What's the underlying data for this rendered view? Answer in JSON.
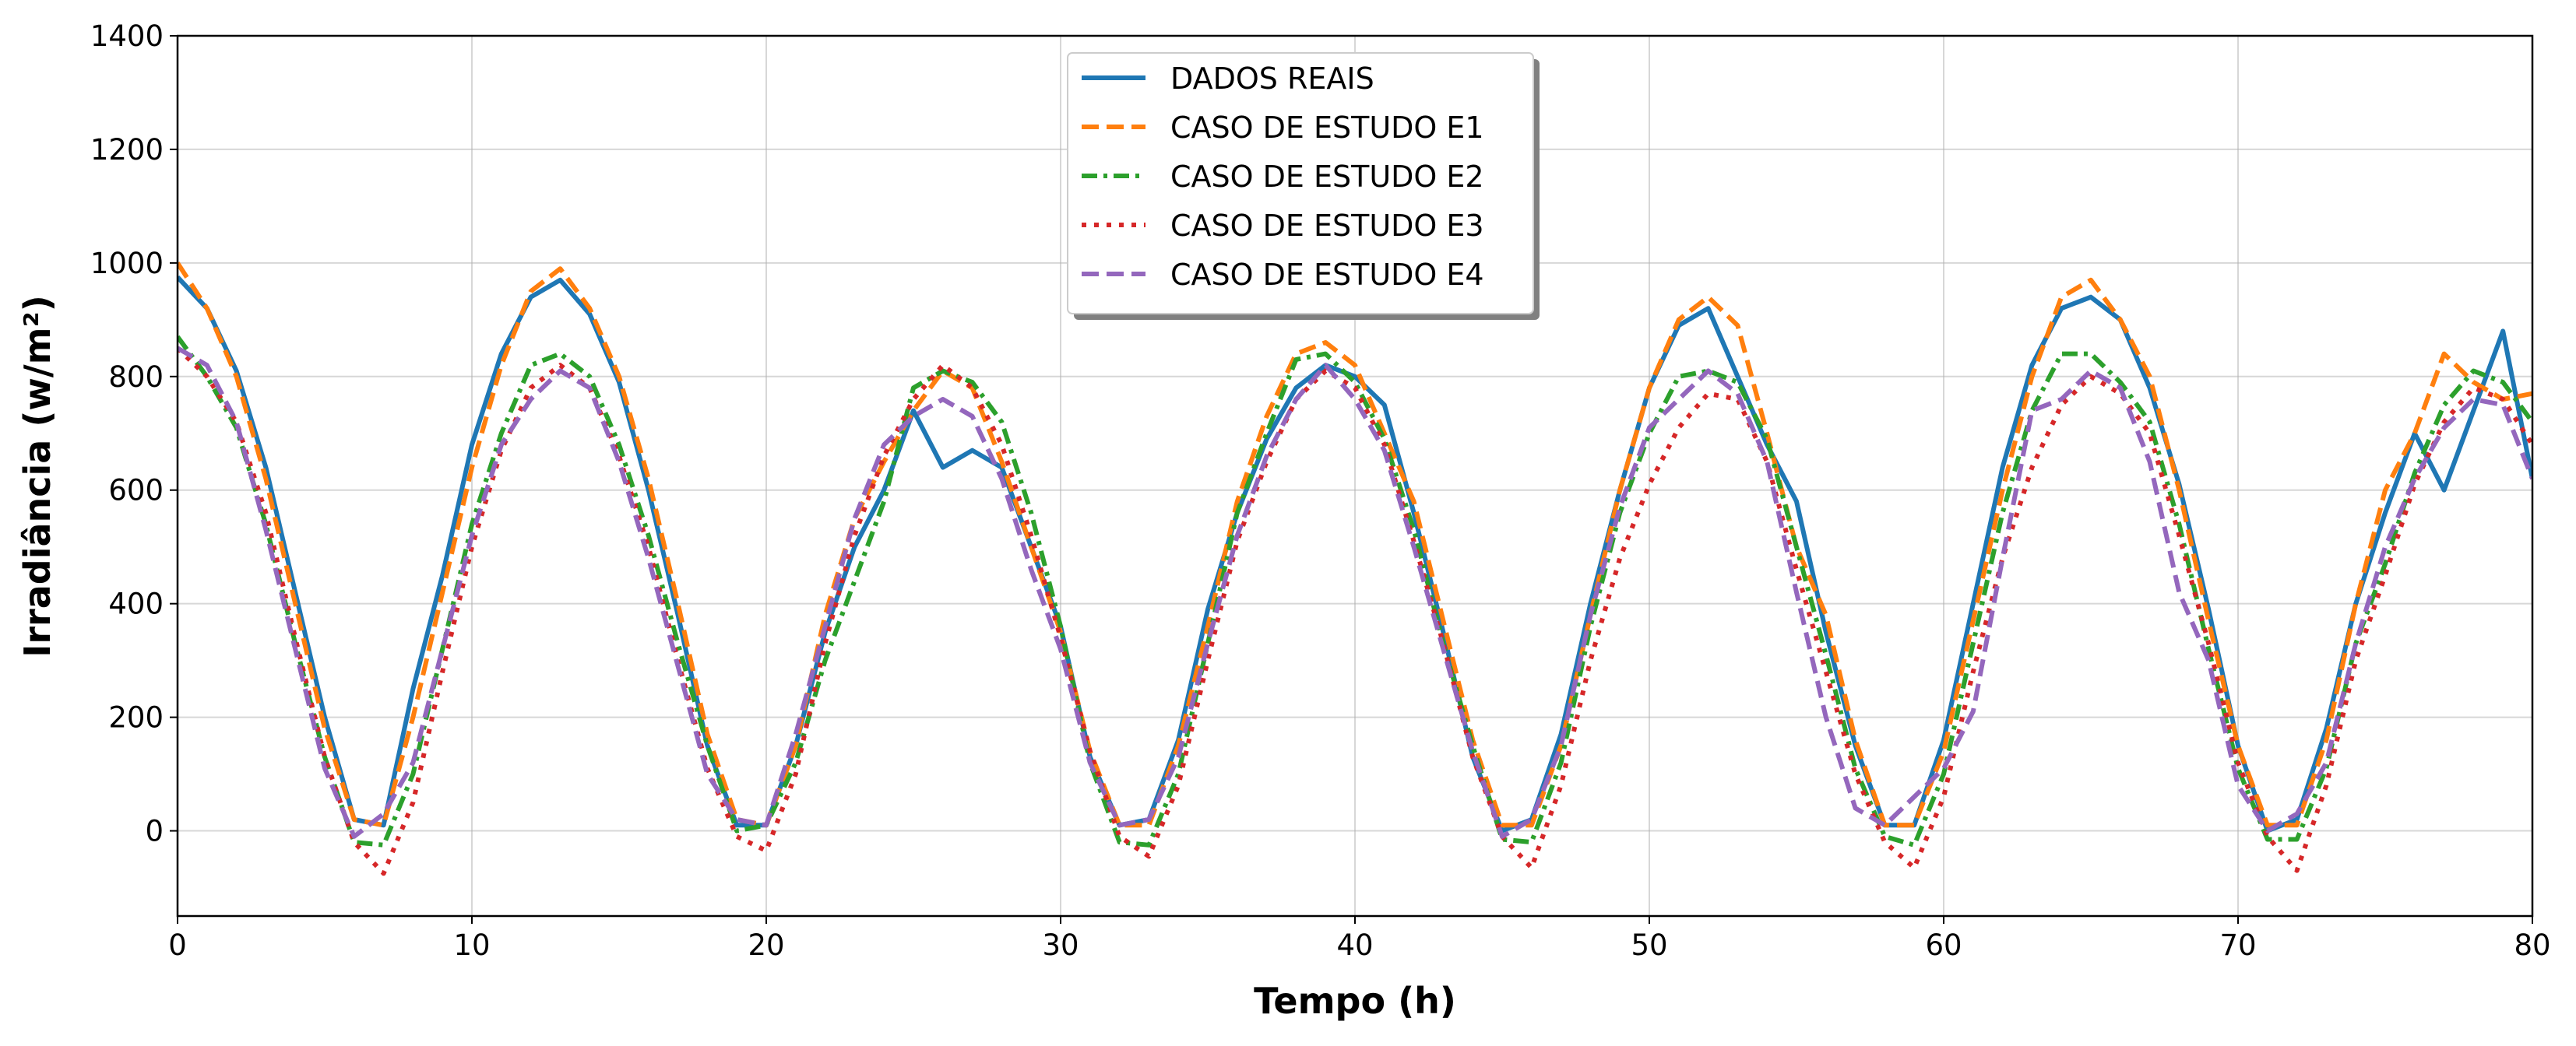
{
  "chart_data": {
    "type": "line",
    "xlabel": "Tempo (h)",
    "ylabel": "Irradiância (w/m²)",
    "x": [
      0,
      1,
      2,
      3,
      4,
      5,
      6,
      7,
      8,
      9,
      10,
      11,
      12,
      13,
      14,
      15,
      16,
      17,
      18,
      19,
      20,
      21,
      22,
      23,
      24,
      25,
      26,
      27,
      28,
      29,
      30,
      31,
      32,
      33,
      34,
      35,
      36,
      37,
      38,
      39,
      40,
      41,
      42,
      43,
      44,
      45,
      46,
      47,
      48,
      49,
      50,
      51,
      52,
      53,
      54,
      55,
      56,
      57,
      58,
      59,
      60,
      61,
      62,
      63,
      64,
      65,
      66,
      67,
      68,
      69,
      70,
      71,
      72,
      73,
      74,
      75,
      76,
      77,
      78,
      79,
      80
    ],
    "xlim": [
      0,
      80
    ],
    "xticks": [
      0,
      10,
      20,
      30,
      40,
      50,
      60,
      70,
      80
    ],
    "ylim": [
      -150,
      1400
    ],
    "yticks": [
      0,
      200,
      400,
      600,
      800,
      1000,
      1200,
      1400
    ],
    "grid": true,
    "legend": "upper center",
    "series": [
      {
        "name": "DADOS REAIS",
        "color": "#1f77b4",
        "linestyle": "solid",
        "values": [
          975,
          920,
          810,
          640,
          420,
          200,
          20,
          10,
          250,
          450,
          680,
          840,
          940,
          970,
          910,
          790,
          600,
          380,
          150,
          10,
          10,
          150,
          350,
          500,
          600,
          740,
          640,
          670,
          640,
          500,
          360,
          130,
          10,
          20,
          160,
          390,
          560,
          690,
          780,
          820,
          800,
          750,
          560,
          350,
          130,
          0,
          20,
          170,
          400,
          600,
          780,
          890,
          920,
          800,
          680,
          580,
          350,
          150,
          10,
          10,
          160,
          400,
          640,
          820,
          920,
          940,
          900,
          780,
          610,
          390,
          150,
          0,
          20,
          180,
          400,
          560,
          700,
          600,
          740,
          880,
          620
        ]
      },
      {
        "name": "CASO DE ESTUDO E1",
        "color": "#ff7f0e",
        "linestyle": "dashed",
        "values": [
          1000,
          920,
          800,
          620,
          400,
          180,
          20,
          10,
          200,
          420,
          640,
          820,
          950,
          990,
          920,
          800,
          620,
          400,
          170,
          20,
          10,
          150,
          380,
          550,
          650,
          740,
          810,
          780,
          650,
          500,
          350,
          140,
          10,
          10,
          150,
          360,
          580,
          730,
          840,
          860,
          820,
          700,
          580,
          370,
          160,
          10,
          10,
          150,
          380,
          600,
          780,
          900,
          940,
          890,
          700,
          500,
          380,
          160,
          10,
          10,
          140,
          370,
          600,
          800,
          940,
          970,
          900,
          800,
          600,
          370,
          150,
          10,
          10,
          160,
          400,
          600,
          700,
          840,
          790,
          760,
          770
        ]
      },
      {
        "name": "CASO DE ESTUDO E2",
        "color": "#2ca02c",
        "linestyle": "dashdot",
        "values": [
          870,
          800,
          710,
          540,
          330,
          130,
          -20,
          -25,
          100,
          320,
          540,
          700,
          820,
          840,
          800,
          680,
          520,
          330,
          150,
          0,
          10,
          120,
          300,
          440,
          580,
          780,
          810,
          790,
          720,
          560,
          360,
          120,
          -20,
          -25,
          100,
          330,
          560,
          700,
          830,
          840,
          790,
          690,
          530,
          330,
          150,
          -15,
          -20,
          120,
          360,
          560,
          700,
          800,
          810,
          790,
          690,
          500,
          310,
          110,
          -10,
          -25,
          100,
          330,
          560,
          740,
          840,
          840,
          790,
          720,
          540,
          320,
          110,
          -15,
          -15,
          110,
          330,
          470,
          630,
          750,
          810,
          790,
          720
        ]
      },
      {
        "name": "CASO DE ESTUDO E3",
        "color": "#d62728",
        "linestyle": "dotted",
        "values": [
          850,
          800,
          720,
          560,
          340,
          130,
          -20,
          -75,
          50,
          280,
          500,
          670,
          780,
          820,
          780,
          660,
          500,
          300,
          110,
          -10,
          -35,
          100,
          330,
          520,
          660,
          760,
          820,
          780,
          680,
          520,
          340,
          140,
          -10,
          -45,
          80,
          300,
          510,
          650,
          760,
          810,
          780,
          680,
          510,
          330,
          130,
          -10,
          -65,
          80,
          300,
          480,
          610,
          710,
          770,
          760,
          650,
          460,
          280,
          100,
          -20,
          -65,
          60,
          280,
          480,
          640,
          750,
          800,
          770,
          700,
          520,
          330,
          120,
          -10,
          -70,
          80,
          300,
          450,
          610,
          720,
          780,
          760,
          680
        ]
      },
      {
        "name": "CASO DE ESTUDO E4",
        "color": "#9467bd",
        "linestyle": "dashed",
        "values": [
          850,
          820,
          720,
          530,
          320,
          110,
          -10,
          30,
          120,
          320,
          520,
          680,
          760,
          810,
          780,
          650,
          480,
          290,
          100,
          20,
          10,
          170,
          360,
          550,
          680,
          730,
          760,
          730,
          620,
          460,
          320,
          120,
          10,
          20,
          130,
          330,
          520,
          660,
          760,
          820,
          760,
          670,
          500,
          320,
          140,
          -10,
          20,
          150,
          380,
          570,
          710,
          760,
          810,
          770,
          650,
          420,
          200,
          40,
          10,
          60,
          110,
          210,
          480,
          740,
          760,
          810,
          780,
          650,
          420,
          300,
          80,
          0,
          30,
          120,
          330,
          500,
          620,
          710,
          760,
          750,
          620
        ]
      }
    ]
  }
}
